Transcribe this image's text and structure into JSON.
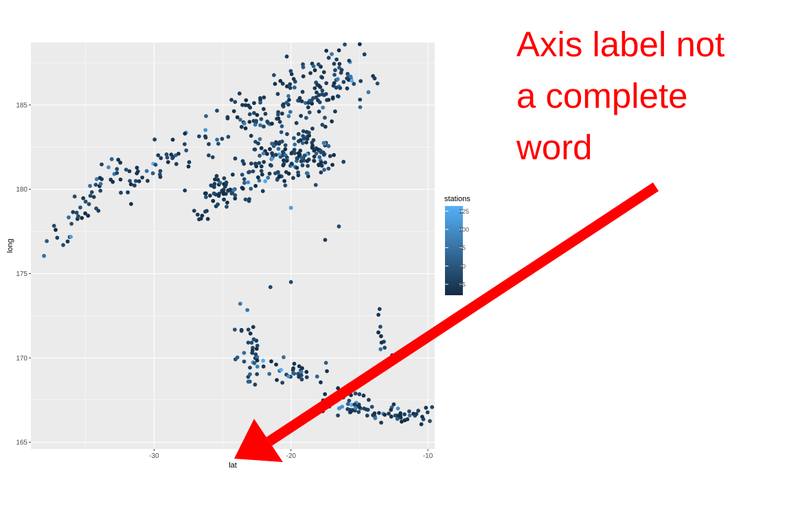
{
  "chart_data": {
    "type": "scatter",
    "title": "",
    "xlabel": "lat",
    "ylabel": "long",
    "xlim": [
      -39,
      -9.5
    ],
    "ylim": [
      164.6,
      188.7
    ],
    "x_ticks": [
      -30,
      -20,
      -10
    ],
    "x_tick_labels": [
      "-30",
      "-20",
      "-10"
    ],
    "y_ticks": [
      165,
      170,
      175,
      180,
      185
    ],
    "y_tick_labels": [
      "165",
      "170",
      "175",
      "180",
      "185"
    ],
    "grid": true,
    "panel_background": "#ebebeb",
    "color_scale": {
      "title": "stations",
      "min": 10,
      "max": 132,
      "ticks": [
        25,
        50,
        75,
        100,
        125
      ],
      "tick_labels": [
        "25",
        "50",
        "75",
        "100",
        "125"
      ],
      "low_color": "#132b43",
      "high_color": "#56b1f7",
      "legend_position": "right"
    },
    "points_description": "quakes dataset: lat vs long colored by number of stations (approximated)",
    "points": []
  },
  "annotation": {
    "lines": [
      "Axis label not",
      "a complete",
      "word"
    ],
    "color": "#ff0000",
    "arrow_color": "#ff0000"
  }
}
